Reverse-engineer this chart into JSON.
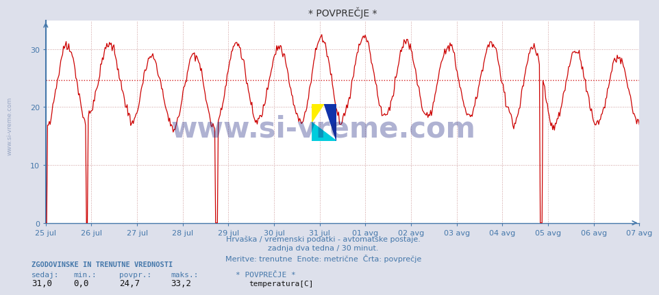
{
  "title": "* POVPREČJE *",
  "bg_color": "#dde0eb",
  "plot_bg_color": "#ffffff",
  "line_color": "#cc0000",
  "avg_line_color": "#cc0000",
  "avg_line_value": 24.7,
  "ylim": [
    0,
    35
  ],
  "yticks": [
    0,
    10,
    20,
    30
  ],
  "xlabel_line1": "Hrvaška / vremenski podatki - avtomatske postaje.",
  "xlabel_line2": "zadnja dva tedna / 30 minut.",
  "xlabel_line3": "Meritve: trenutne  Enote: metrične  Črta: povprečje",
  "x_labels": [
    "25 jul",
    "26 jul",
    "27 jul",
    "28 jul",
    "29 jul",
    "30 jul",
    "31 jul",
    "01 avg",
    "02 avg",
    "03 avg",
    "04 avg",
    "05 avg",
    "06 avg",
    "07 avg"
  ],
  "footer_title": "ZGODOVINSKE IN TRENUTNE VREDNOSTI",
  "footer_labels": [
    "sedaj:",
    "min.:",
    "povpr.:",
    "maks.:"
  ],
  "footer_values": [
    "31,0",
    "0,0",
    "24,7",
    "33,2"
  ],
  "legend_label": "* POVPREČJE *",
  "legend_series": "temperatura[C]",
  "legend_color": "#cc0000",
  "watermark_text": "www.si-vreme.com",
  "watermark_color": "#1a237e",
  "watermark_alpha": 0.35,
  "grid_color": "#cc9999",
  "grid_style": ":",
  "axis_color": "#4477aa",
  "label_color": "#4477aa",
  "title_color": "#333333",
  "num_points": 672,
  "dropout_positions": [
    0,
    1,
    46,
    47,
    192,
    193,
    194,
    559,
    560,
    561
  ]
}
